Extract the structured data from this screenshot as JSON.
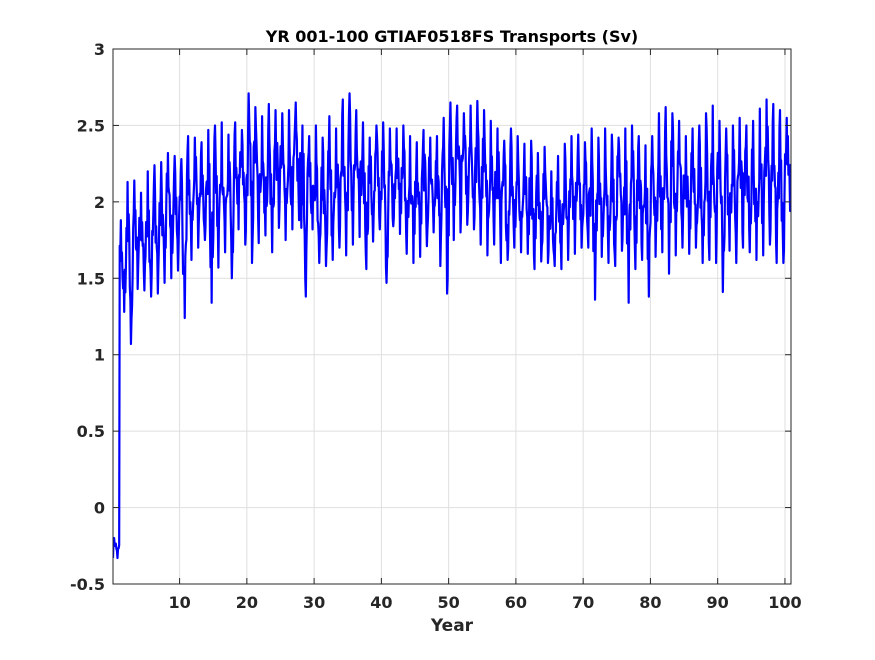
{
  "chart_data": {
    "type": "line",
    "title": "YR 001-100 GTIAF0518FS Transports (Sv)",
    "xlabel": "Year",
    "ylabel": "",
    "xlim": [
      0.1,
      100.9
    ],
    "ylim": [
      -0.5,
      3
    ],
    "xticks": [
      10,
      20,
      30,
      40,
      50,
      60,
      70,
      80,
      90,
      100
    ],
    "yticks": [
      -0.5,
      0,
      0.5,
      1,
      1.5,
      2,
      2.5,
      3
    ],
    "xtick_labels": [
      "10",
      "20",
      "30",
      "40",
      "50",
      "60",
      "70",
      "80",
      "90",
      "100"
    ],
    "ytick_labels": [
      "-0.5",
      "0",
      "0.5",
      "1",
      "1.5",
      "2",
      "2.5",
      "3"
    ],
    "grid": true,
    "legend": "none",
    "series": [
      {
        "color": "#0000ff",
        "sampling": "monthly",
        "annual_max": [
          -0.2,
          1.88,
          2.13,
          2.14,
          2.06,
          2.2,
          2.24,
          2.26,
          2.32,
          2.3,
          2.28,
          2.43,
          2.42,
          2.39,
          2.47,
          2.5,
          2.52,
          2.44,
          2.52,
          2.47,
          2.71,
          2.62,
          2.56,
          2.64,
          2.6,
          2.58,
          2.6,
          2.65,
          2.5,
          2.43,
          2.5,
          2.42,
          2.56,
          2.48,
          2.67,
          2.71,
          2.6,
          2.52,
          2.42,
          2.5,
          2.52,
          2.48,
          2.48,
          2.5,
          2.43,
          2.39,
          2.47,
          2.42,
          2.43,
          2.55,
          2.65,
          2.63,
          2.58,
          2.63,
          2.66,
          2.6,
          2.53,
          2.48,
          2.4,
          2.48,
          2.43,
          2.38,
          2.4,
          2.32,
          2.36,
          2.2,
          2.3,
          2.38,
          2.43,
          2.44,
          2.39,
          2.48,
          2.42,
          2.48,
          2.44,
          2.42,
          2.48,
          2.5,
          2.43,
          2.37,
          2.43,
          2.58,
          2.62,
          2.58,
          2.53,
          2.43,
          2.48,
          2.5,
          2.58,
          2.63,
          2.53,
          2.48,
          2.5,
          2.55,
          2.5,
          2.53,
          2.61,
          2.67,
          2.64,
          2.6,
          2.55
        ],
        "annual_min": [
          -0.33,
          1.28,
          1.07,
          1.43,
          1.42,
          1.38,
          1.4,
          1.47,
          1.5,
          1.55,
          1.24,
          1.62,
          1.7,
          1.75,
          1.34,
          1.57,
          1.67,
          1.5,
          1.82,
          1.72,
          1.6,
          1.73,
          1.78,
          1.67,
          1.83,
          1.75,
          1.82,
          1.88,
          1.38,
          1.82,
          1.6,
          1.58,
          1.62,
          1.7,
          1.65,
          1.72,
          1.77,
          1.56,
          1.74,
          1.82,
          1.47,
          1.84,
          1.79,
          1.66,
          1.6,
          1.64,
          1.71,
          1.8,
          1.58,
          1.4,
          1.75,
          1.8,
          1.85,
          1.82,
          1.72,
          1.65,
          1.72,
          1.6,
          1.62,
          1.7,
          1.67,
          1.66,
          1.56,
          1.61,
          1.6,
          1.58,
          1.56,
          1.62,
          1.66,
          1.7,
          1.7,
          1.36,
          1.64,
          1.6,
          1.58,
          1.68,
          1.34,
          1.56,
          1.62,
          1.38,
          1.64,
          1.67,
          1.53,
          1.65,
          1.7,
          1.66,
          1.7,
          1.6,
          1.62,
          1.6,
          1.41,
          1.68,
          1.6,
          1.7,
          1.67,
          1.62,
          1.65,
          1.72,
          1.6,
          1.6,
          1.94
        ]
      }
    ]
  }
}
